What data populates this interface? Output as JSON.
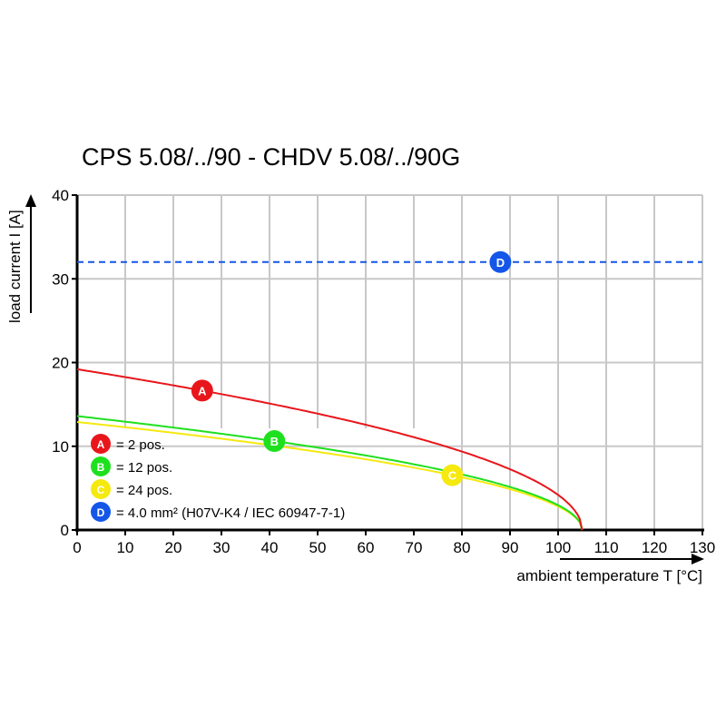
{
  "chart_data": {
    "type": "line",
    "title": "CPS 5.08/../90 - CHDV 5.08/../90G",
    "xlabel": "ambient temperature T [°C]",
    "ylabel": "load current I [A]",
    "xlim": [
      0,
      130
    ],
    "ylim": [
      0,
      40
    ],
    "xticks": [
      "0",
      "10",
      "20",
      "30",
      "40",
      "50",
      "60",
      "70",
      "80",
      "90",
      "100",
      "110",
      "120",
      "130"
    ],
    "yticks": [
      "0",
      "10",
      "20",
      "30",
      "40"
    ],
    "grid": true,
    "legend_placement": "bottom-left",
    "series": [
      {
        "marker": "A",
        "name": "= 2 pos.",
        "color": "#e8161b",
        "style": "solid",
        "x": [
          0,
          10,
          20,
          26,
          30,
          40,
          50,
          60,
          70,
          80,
          90,
          100,
          105
        ],
        "y": [
          19.2,
          18.3,
          17.3,
          16.6,
          16.2,
          15.0,
          13.7,
          12.3,
          10.6,
          8.8,
          6.7,
          3.7,
          0
        ],
        "marker_x": 26
      },
      {
        "marker": "B",
        "name": "= 12 pos.",
        "color": "#1ee01e",
        "style": "solid",
        "x": [
          0,
          10,
          20,
          30,
          40,
          41,
          50,
          60,
          70,
          80,
          90,
          100,
          105
        ],
        "y": [
          13.6,
          12.9,
          12.2,
          11.5,
          10.6,
          10.5,
          9.7,
          8.7,
          7.6,
          6.3,
          4.8,
          2.7,
          0
        ],
        "marker_x": 41
      },
      {
        "marker": "C",
        "name": "= 24 pos.",
        "color": "#f5e90f",
        "style": "solid",
        "x": [
          0,
          10,
          20,
          30,
          40,
          50,
          60,
          70,
          78,
          80,
          90,
          100,
          105
        ],
        "y": [
          12.9,
          12.3,
          11.6,
          10.9,
          10.1,
          9.2,
          8.3,
          7.2,
          6.1,
          5.9,
          4.5,
          2.5,
          0
        ],
        "marker_x": 78
      },
      {
        "marker": "D",
        "name": "= 4.0 mm² (H07V-K4 / IEC 60947-7-1)",
        "color": "#1457e8",
        "style": "dashed",
        "x": [
          0,
          130
        ],
        "y": [
          32,
          32
        ],
        "marker_x": 88
      }
    ]
  }
}
